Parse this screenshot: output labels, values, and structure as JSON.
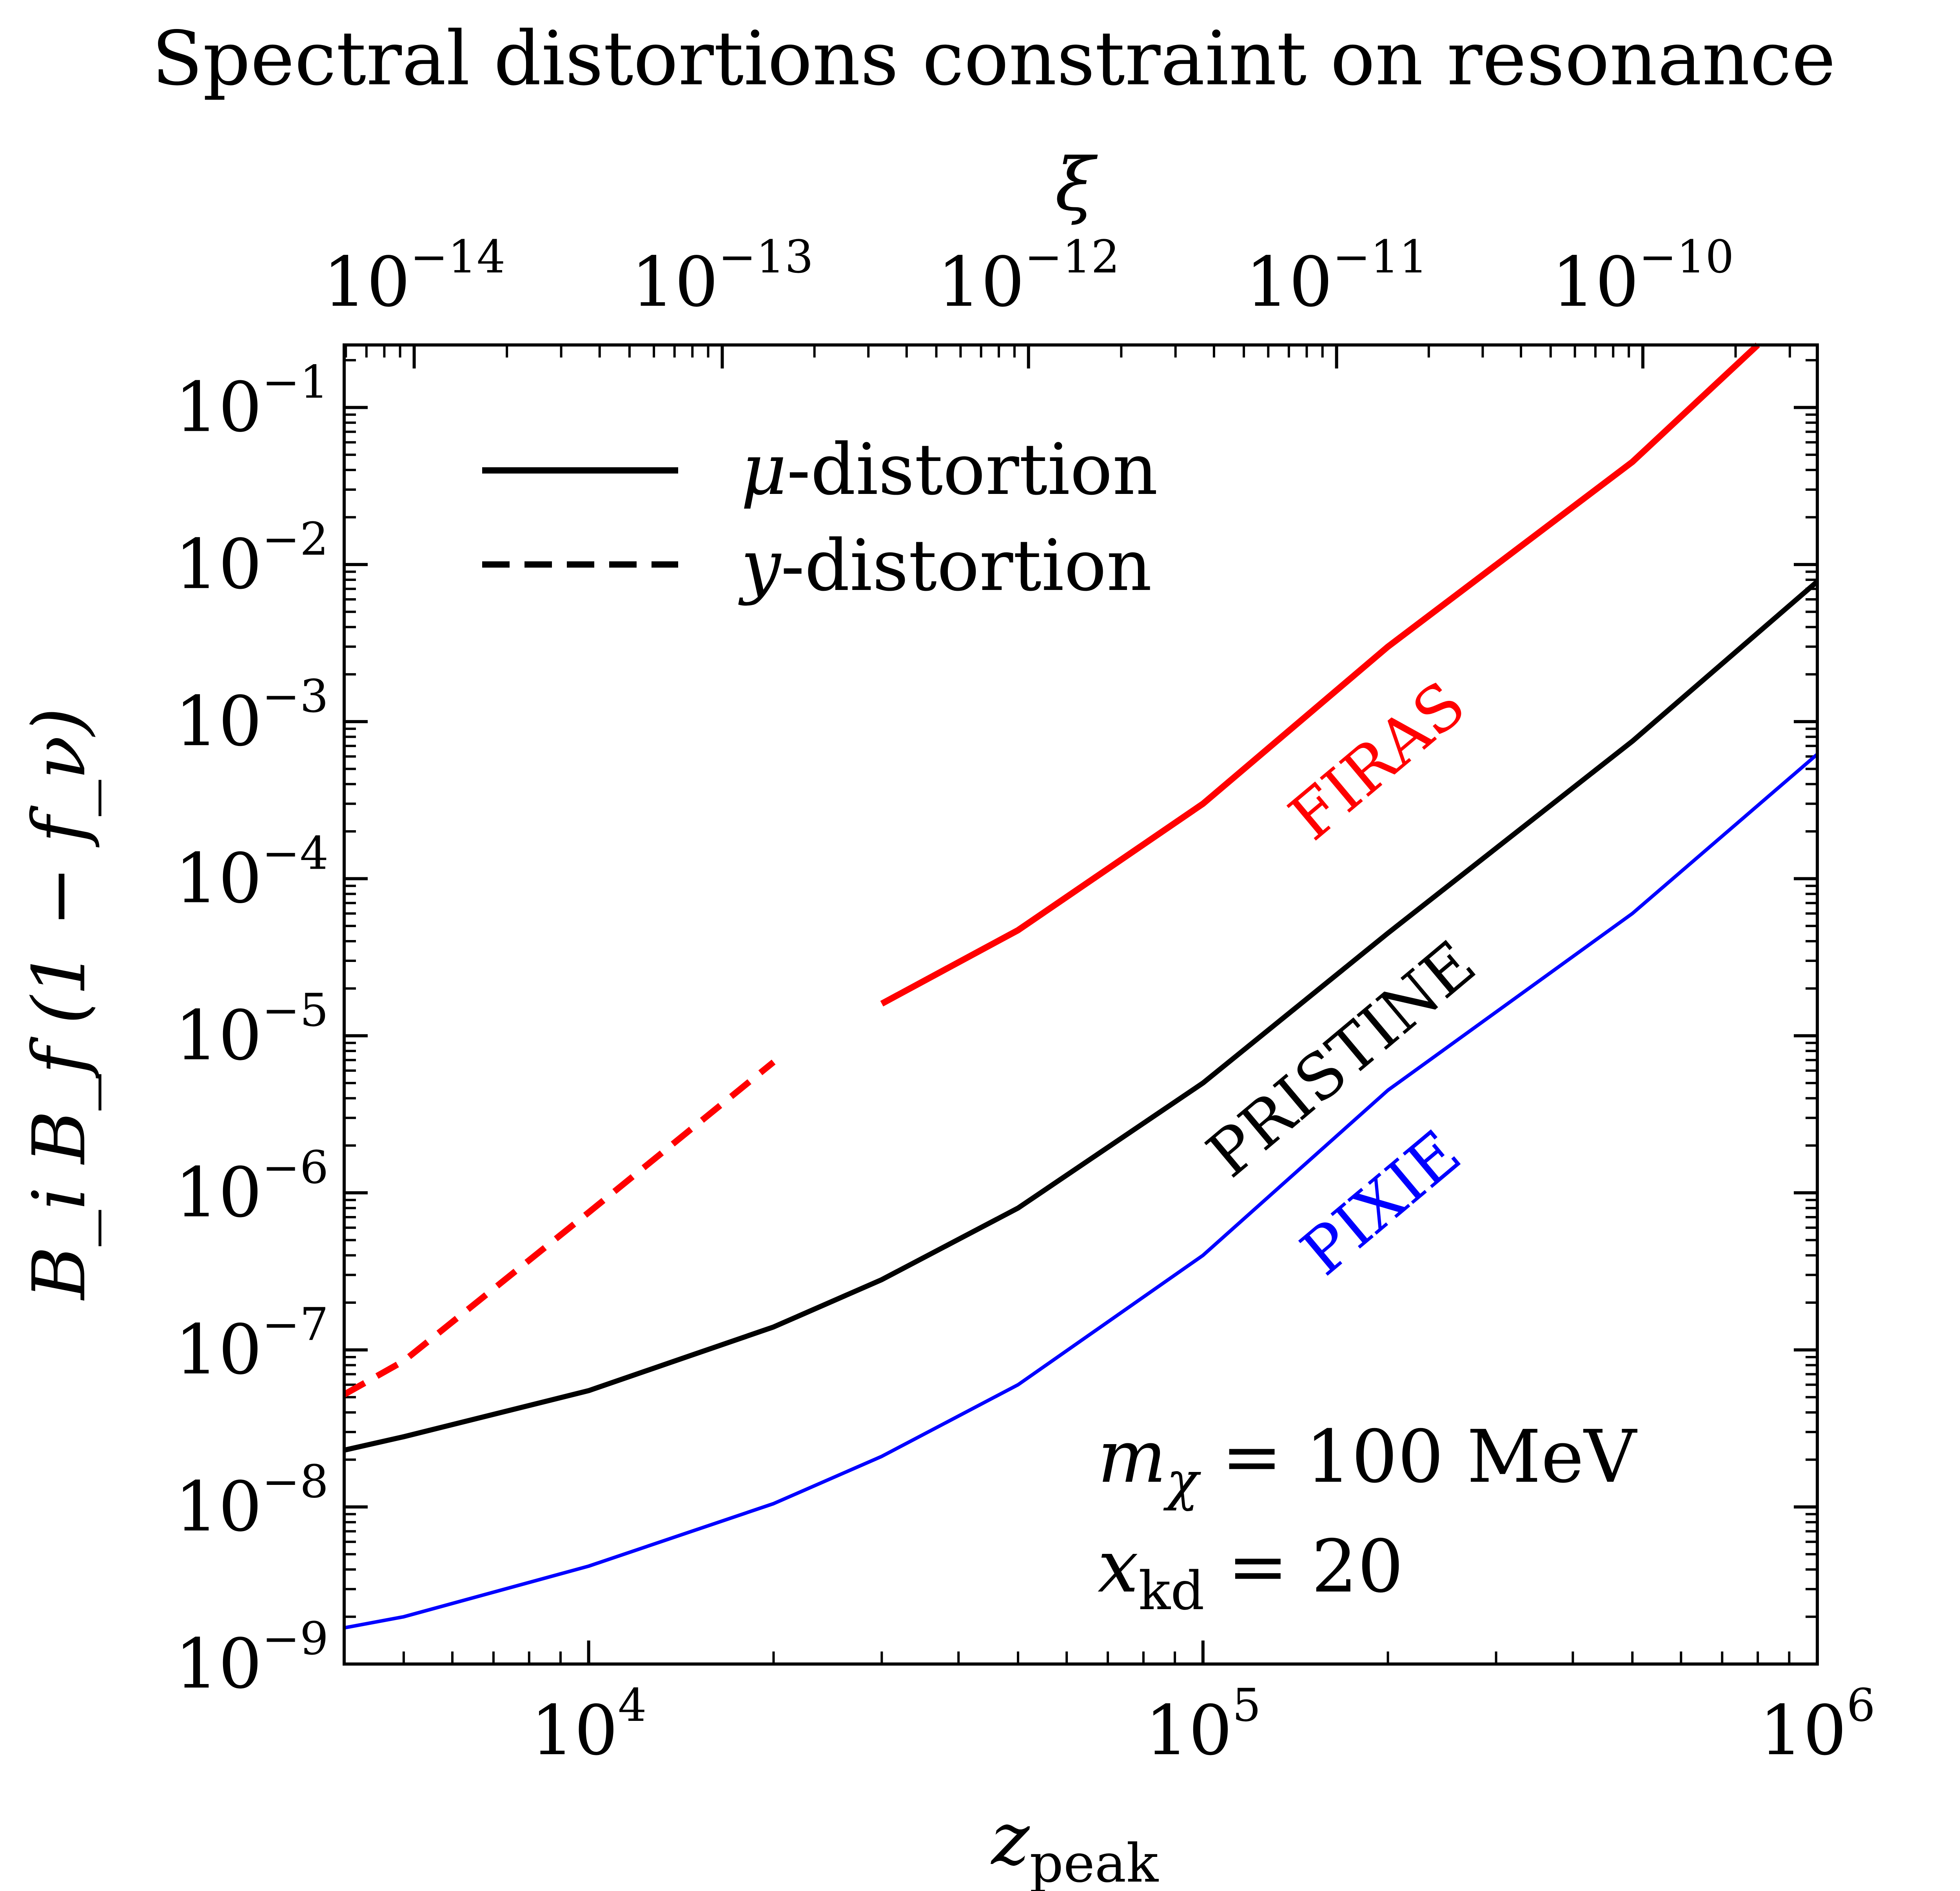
{
  "chart_data": {
    "type": "line",
    "title": "Spectral distortions constraint on resonance",
    "xlabel": {
      "base": "z",
      "sub": "peak"
    },
    "ylabel": "B_i B_f (1 − f_ν)",
    "top_xlabel": "ξ",
    "xscale": "log",
    "yscale": "log",
    "xlim": [
      4000,
      1000000
    ],
    "ylim": [
      1e-09,
      0.25
    ],
    "x_ticks": [
      {
        "value": 10000,
        "base": "10",
        "exp": "4"
      },
      {
        "value": 100000,
        "base": "10",
        "exp": "5"
      },
      {
        "value": 1000000,
        "base": "10",
        "exp": "6"
      }
    ],
    "y_ticks": [
      {
        "value": 0.1,
        "base": "10",
        "exp": "−1"
      },
      {
        "value": 0.01,
        "base": "10",
        "exp": "−2"
      },
      {
        "value": 0.001,
        "base": "10",
        "exp": "−3"
      },
      {
        "value": 0.0001,
        "base": "10",
        "exp": "−4"
      },
      {
        "value": 1e-05,
        "base": "10",
        "exp": "−5"
      },
      {
        "value": 1e-06,
        "base": "10",
        "exp": "−6"
      },
      {
        "value": 1e-07,
        "base": "10",
        "exp": "−7"
      },
      {
        "value": 1e-08,
        "base": "10",
        "exp": "−8"
      },
      {
        "value": 1e-09,
        "base": "10",
        "exp": "−9"
      }
    ],
    "top_ticks": [
      {
        "z": 5200,
        "base": "10",
        "exp": "−14"
      },
      {
        "z": 16500,
        "base": "10",
        "exp": "−13"
      },
      {
        "z": 52000,
        "base": "10",
        "exp": "−12"
      },
      {
        "z": 165000,
        "base": "10",
        "exp": "−11"
      },
      {
        "z": 520000,
        "base": "10",
        "exp": "−10"
      }
    ],
    "series": [
      {
        "name": "FIRAS",
        "distortion": "y",
        "color": "#ff0000",
        "style": "dashed",
        "width": 16,
        "x": [
          4000,
          5000,
          10000,
          20000
        ],
        "y": [
          5.2e-08,
          8.5e-08,
          7.5e-07,
          6.8e-06
        ]
      },
      {
        "name": "FIRAS",
        "distortion": "mu",
        "color": "#ff0000",
        "style": "solid",
        "width": 16,
        "x": [
          30000,
          50000,
          100000,
          200000,
          500000,
          800000
        ],
        "y": [
          1.6e-05,
          4.7e-05,
          0.0003,
          0.003,
          0.045,
          0.25
        ]
      },
      {
        "name": "PRISTINE",
        "distortion": "mu",
        "color": "#000000",
        "style": "solid",
        "width": 13,
        "x": [
          4000,
          5000,
          10000,
          20000,
          30000,
          50000,
          100000,
          200000,
          500000,
          1000000
        ],
        "y": [
          2.3e-08,
          2.8e-08,
          5.5e-08,
          1.4e-07,
          2.8e-07,
          8e-07,
          5e-06,
          4.5e-05,
          0.00075,
          0.0078
        ]
      },
      {
        "name": "PIXIE",
        "distortion": "mu",
        "color": "#0000ff",
        "style": "solid",
        "width": 9,
        "x": [
          4000,
          5000,
          10000,
          20000,
          30000,
          50000,
          100000,
          200000,
          500000,
          1000000
        ],
        "y": [
          1.7e-09,
          2e-09,
          4.2e-09,
          1.05e-08,
          2.1e-08,
          6e-08,
          4e-07,
          4.5e-06,
          6e-05,
          0.00062
        ]
      }
    ],
    "series_labels": [
      {
        "text": "FIRAS",
        "color": "#ff0000"
      },
      {
        "text": "PRISTINE",
        "color": "#000000"
      },
      {
        "text": "PIXIE",
        "color": "#0000ff"
      }
    ],
    "legend": {
      "placement": "top-left",
      "entries": [
        {
          "symbol": "μ",
          "text": "-distortion",
          "style": "solid"
        },
        {
          "symbol": "y",
          "text": "-distortion",
          "style": "dashed"
        }
      ]
    },
    "annotations": {
      "mass": {
        "symbol": "m",
        "sub": "χ",
        "rest": " = 100 MeV"
      },
      "xkd": {
        "symbol": "x",
        "sub": "kd",
        "rest": " = 20"
      }
    }
  }
}
